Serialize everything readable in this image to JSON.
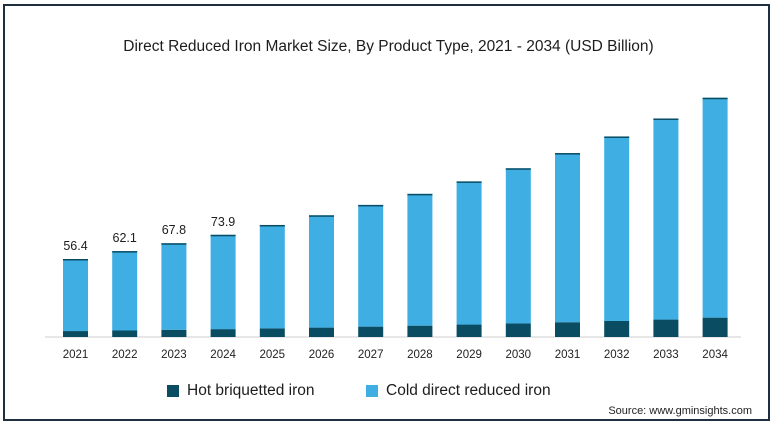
{
  "title": "Direct Reduced Iron Market Size, By Product Type, 2021 - 2034 (USD Billion)",
  "source": "Source: www.gminsights.com",
  "colors": {
    "hot": "#0a4d63",
    "cold": "#3eaee3",
    "axis": "#cfcfcf"
  },
  "chart_data": {
    "type": "bar",
    "stacked": true,
    "title": "Direct Reduced Iron Market Size, By Product Type, 2021 - 2034 (USD Billion)",
    "categories": [
      "2021",
      "2022",
      "2023",
      "2024",
      "2025",
      "2026",
      "2027",
      "2028",
      "2029",
      "2030",
      "2031",
      "2032",
      "2033",
      "2034"
    ],
    "series": [
      {
        "name": "Hot briquetted iron",
        "values": [
          4.3,
          4.7,
          5.2,
          5.7,
          6.2,
          6.8,
          7.5,
          8.2,
          9.0,
          9.8,
          10.7,
          11.6,
          12.6,
          14.0
        ]
      },
      {
        "name": "Cold direct reduced iron",
        "values": [
          52.1,
          57.4,
          62.6,
          68.2,
          74.8,
          81.2,
          88.0,
          95.3,
          103.5,
          112.2,
          122.3,
          133.4,
          145.4,
          159.0
        ]
      }
    ],
    "data_labels": [
      "56.4",
      "62.1",
      "67.8",
      "73.9",
      "",
      "",
      "",
      "",
      "",
      "",
      "",
      "",
      "",
      ""
    ],
    "ylim": [
      0,
      180
    ],
    "grid": false,
    "legend_position": "bottom"
  },
  "legend": [
    {
      "label": "Hot briquetted iron",
      "color": "#0a4d63"
    },
    {
      "label": "Cold direct reduced iron",
      "color": "#3eaee3"
    }
  ]
}
